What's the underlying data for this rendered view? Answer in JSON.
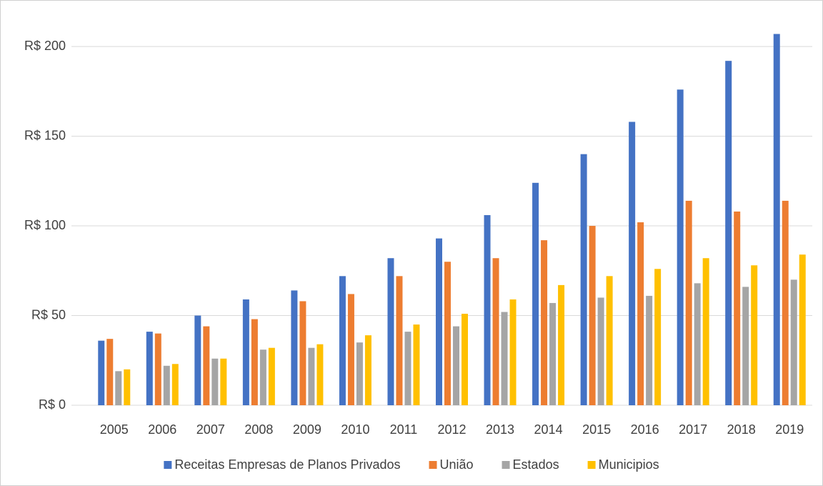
{
  "chart_data": {
    "type": "bar",
    "categories": [
      "2005",
      "2006",
      "2007",
      "2008",
      "2009",
      "2010",
      "2011",
      "2012",
      "2013",
      "2014",
      "2015",
      "2016",
      "2017",
      "2018",
      "2019"
    ],
    "series": [
      {
        "name": "Receitas Empresas de Planos Privados",
        "color": "#4472c4",
        "values": [
          36,
          41,
          50,
          59,
          64,
          72,
          82,
          93,
          106,
          124,
          140,
          158,
          176,
          192,
          207
        ]
      },
      {
        "name": "União",
        "color": "#ed7d31",
        "values": [
          37,
          40,
          44,
          48,
          58,
          62,
          72,
          80,
          82,
          92,
          100,
          102,
          114,
          108,
          114
        ]
      },
      {
        "name": "Estados",
        "color": "#a5a5a5",
        "values": [
          19,
          22,
          26,
          31,
          32,
          35,
          41,
          44,
          52,
          57,
          60,
          61,
          68,
          66,
          70
        ]
      },
      {
        "name": "Municipios",
        "color": "#ffc000",
        "values": [
          20,
          23,
          26,
          32,
          34,
          39,
          45,
          51,
          59,
          67,
          72,
          76,
          82,
          78,
          84
        ]
      }
    ],
    "ylim": [
      0,
      210
    ],
    "yticks": [
      {
        "value": 0,
        "label": "R$ 0"
      },
      {
        "value": 50,
        "label": "R$ 50"
      },
      {
        "value": 100,
        "label": "R$ 100"
      },
      {
        "value": 150,
        "label": "R$ 150"
      },
      {
        "value": 200,
        "label": "R$ 200"
      }
    ],
    "grid": true,
    "legend": "bottom"
  }
}
